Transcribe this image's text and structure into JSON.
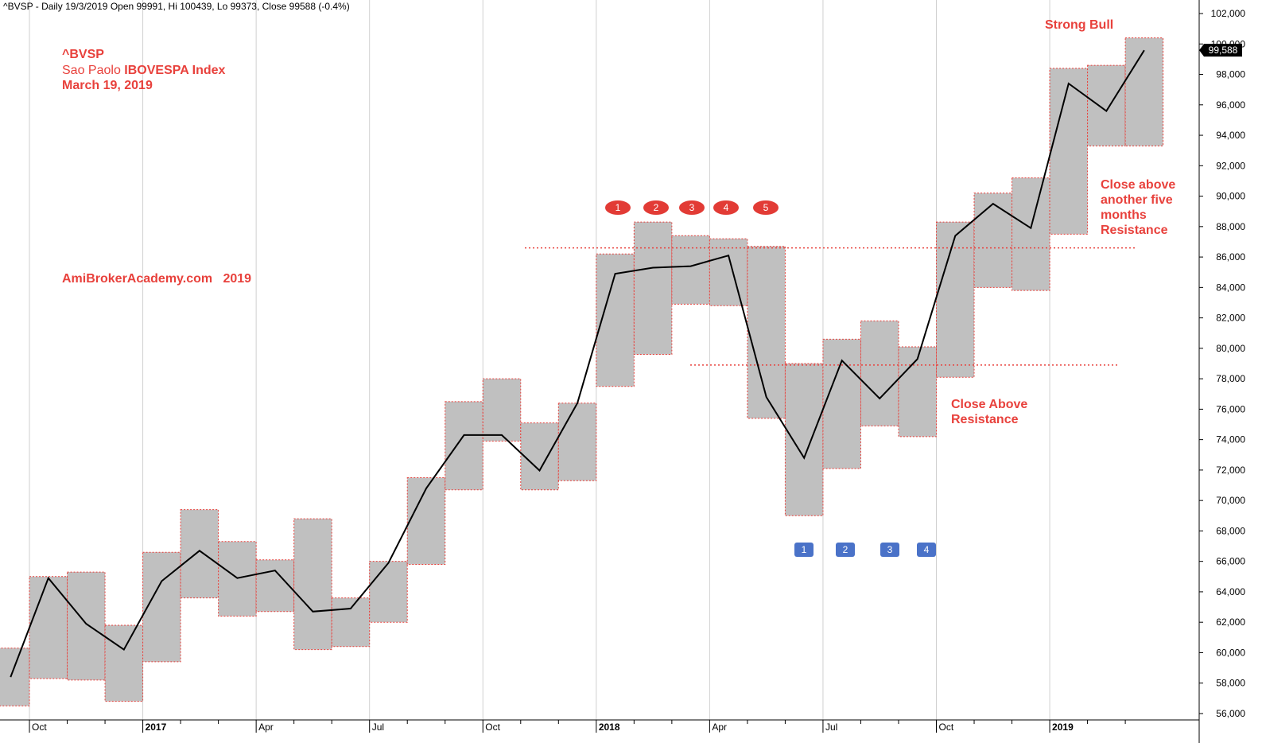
{
  "chart_data": {
    "type": "range_boxes",
    "header": "^BVSP - Daily 19/3/2019 Open 99991, Hi 100439, Lo 99373, Close 99588 (-0.4%)",
    "symbol": "^BVSP",
    "subtitle_plain": "Sao Paolo",
    "subtitle_bold": "IBOVESPA Index",
    "date": "March 19, 2019",
    "watermark": "AmiBrokerAcademy.com   2019",
    "annotations": {
      "strong_bull": "Strong Bull",
      "five_months": [
        "Close above",
        "another five",
        "months",
        "Resistance"
      ],
      "close_above": [
        "Close Above",
        "Resistance"
      ]
    },
    "peak_markers": [
      "1",
      "2",
      "3",
      "4",
      "5"
    ],
    "trough_markers": [
      "1",
      "2",
      "3",
      "4"
    ],
    "categories": [
      null,
      "Oct",
      null,
      null,
      "2017",
      null,
      null,
      "Apr",
      null,
      null,
      "Jul",
      null,
      null,
      "Oct",
      null,
      null,
      "2018",
      null,
      null,
      "Apr",
      null,
      null,
      "Jul",
      null,
      null,
      "Oct",
      null,
      null,
      "2019",
      null,
      null
    ],
    "boxes": {
      "high": [
        60300,
        65000,
        65300,
        61800,
        66600,
        69400,
        67300,
        66100,
        68800,
        63600,
        66000,
        71500,
        76500,
        78000,
        75100,
        76400,
        86200,
        88300,
        87400,
        87200,
        86700,
        79000,
        80600,
        81800,
        80100,
        88300,
        90200,
        91200,
        98400,
        98600,
        100400
      ],
      "low": [
        56500,
        58300,
        58200,
        56800,
        59400,
        63600,
        62400,
        62700,
        60200,
        60400,
        62000,
        65800,
        70700,
        73900,
        70700,
        71300,
        77500,
        79600,
        82900,
        82800,
        75400,
        69000,
        72100,
        74900,
        74200,
        78100,
        84000,
        83800,
        87500,
        93300,
        93300
      ],
      "color": "#c0c0c0",
      "border": "#e8413c"
    },
    "close": [
      58400,
      64900,
      61900,
      60200,
      64700,
      66700,
      64900,
      65400,
      62700,
      62900,
      65900,
      70800,
      74300,
      74300,
      71970,
      76400,
      84900,
      85300,
      85400,
      86100,
      76800,
      72800,
      79200,
      76700,
      79300,
      87400,
      89500,
      87900,
      97400,
      95600,
      99588
    ],
    "close_color": "#000000",
    "last_price": {
      "value": 99588,
      "label": "99,588"
    },
    "reference_lines": [
      86600,
      78900
    ],
    "ylim": [
      55580,
      102890
    ],
    "yticks": [
      {
        "value": 56000,
        "label": "56,000"
      },
      {
        "value": 58000,
        "label": "58,000"
      },
      {
        "value": 60000,
        "label": "60,000"
      },
      {
        "value": 62000,
        "label": "62,000"
      },
      {
        "value": 64000,
        "label": "64,000"
      },
      {
        "value": 66000,
        "label": "66,000"
      },
      {
        "value": 68000,
        "label": "68,000"
      },
      {
        "value": 70000,
        "label": "70,000"
      },
      {
        "value": 72000,
        "label": "72,000"
      },
      {
        "value": 74000,
        "label": "74,000"
      },
      {
        "value": 76000,
        "label": "76,000"
      },
      {
        "value": 78000,
        "label": "78,000"
      },
      {
        "value": 80000,
        "label": "80,000"
      },
      {
        "value": 82000,
        "label": "82,000"
      },
      {
        "value": 84000,
        "label": "84,000"
      },
      {
        "value": 86000,
        "label": "86,000"
      },
      {
        "value": 88000,
        "label": "88,000"
      },
      {
        "value": 90000,
        "label": "90,000"
      },
      {
        "value": 92000,
        "label": "92,000"
      },
      {
        "value": 94000,
        "label": "94,000"
      },
      {
        "value": 96000,
        "label": "96,000"
      },
      {
        "value": 98000,
        "label": "98,000"
      },
      {
        "value": 100000,
        "label": "100,000"
      },
      {
        "value": 102000,
        "label": "102,000"
      }
    ],
    "grid": true
  }
}
